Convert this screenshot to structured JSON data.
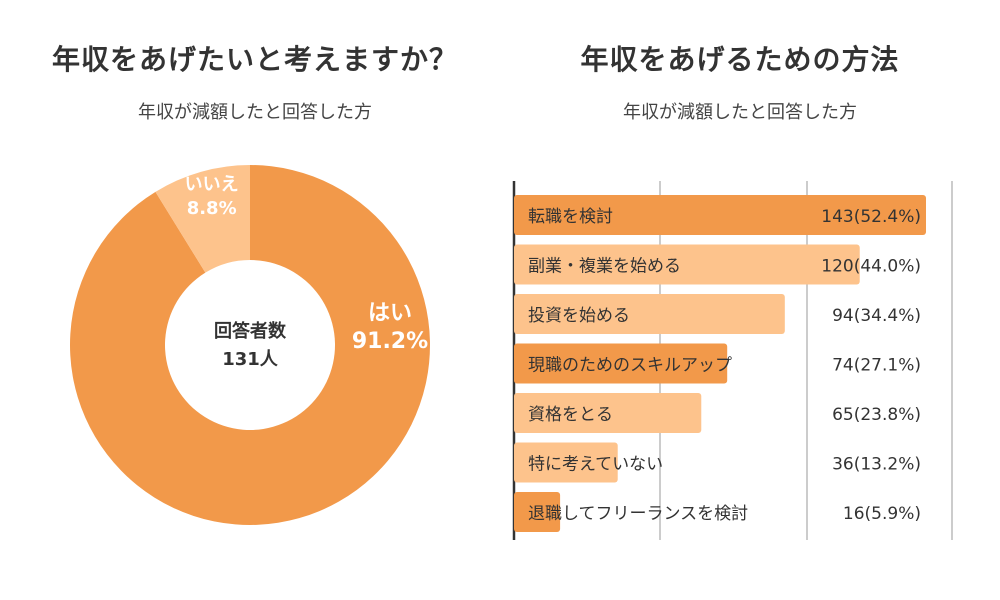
{
  "left": {
    "title": "年収をあげたいと考えますか？",
    "subtitle": "年収が減額したと回答した方",
    "center_label": "回答者数",
    "center_value": "131人"
  },
  "right": {
    "title": "年収をあげるための方法",
    "subtitle": "年収が減額したと回答した方"
  },
  "colors": {
    "primary": "#f2994a",
    "secondary": "#fdc38c",
    "grid": "#cccccc",
    "axis": "#333333",
    "text": "#333333"
  },
  "chart_data": [
    {
      "type": "pie",
      "donut": true,
      "total_label": "131人",
      "slices": [
        {
          "label": "はい",
          "value": 91.2,
          "display": "91.2%",
          "color": "#f2994a"
        },
        {
          "label": "いいえ",
          "value": 8.8,
          "display": "8.8%",
          "color": "#fdc38c"
        }
      ]
    },
    {
      "type": "bar",
      "orientation": "horizontal",
      "xlim": [
        0,
        143
      ],
      "grid": true,
      "categories": [
        "転職を検討",
        "副業・複業を始める",
        "投資を始める",
        "現職のためのスキルアップ",
        "資格をとる",
        "特に考えていない",
        "退職してフリーランスを検討"
      ],
      "values": [
        143,
        120,
        94,
        74,
        65,
        36,
        16
      ],
      "percents": [
        52.4,
        44.0,
        34.4,
        27.1,
        23.8,
        13.2,
        5.9
      ],
      "value_labels": [
        "143(52.4%)",
        "120(44.0%)",
        "94(34.4%)",
        "74(27.1%)",
        "65(23.8%)",
        "36(13.2%)",
        "16(5.9%)"
      ],
      "bar_colors": [
        "#f2994a",
        "#fdc38c",
        "#fdc38c",
        "#f2994a",
        "#fdc38c",
        "#fdc38c",
        "#f2994a"
      ]
    }
  ]
}
